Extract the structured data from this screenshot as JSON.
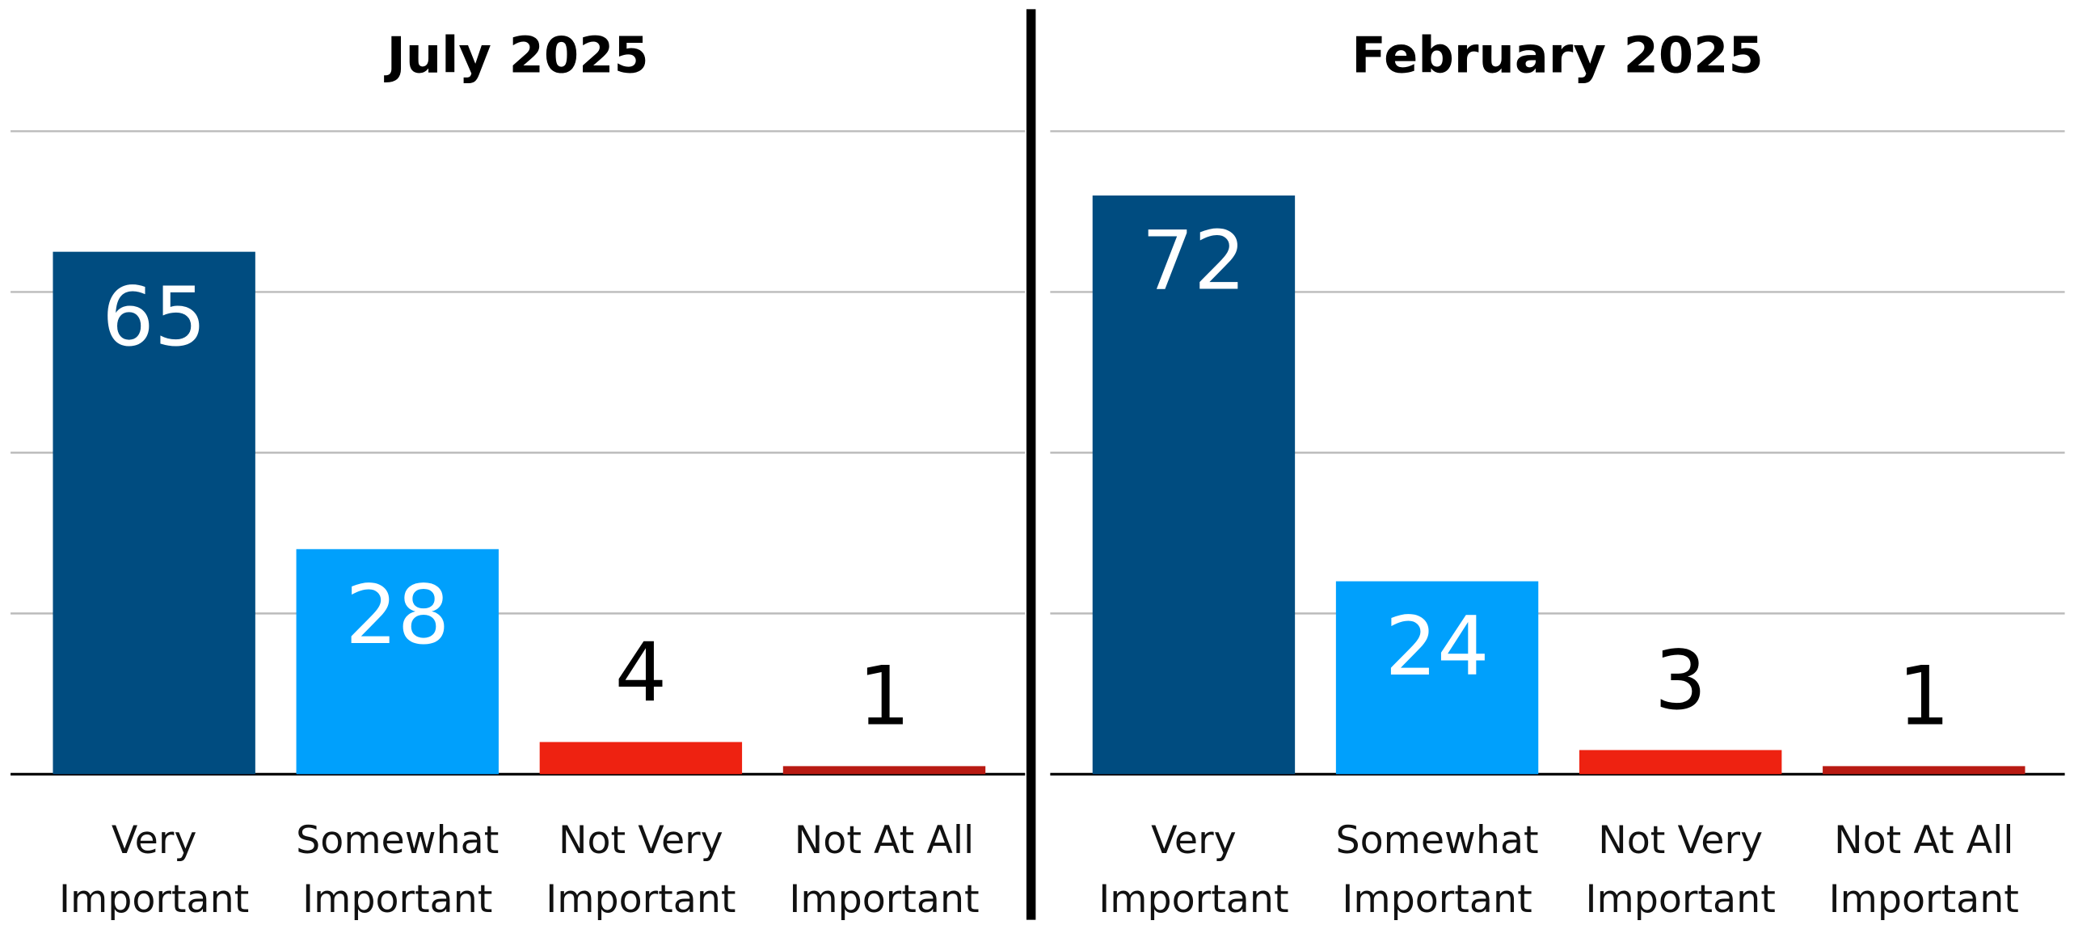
{
  "chart_data": [
    {
      "type": "bar",
      "title": "July 2025",
      "categories": [
        "Very Important",
        "Somewhat Important",
        "Not Very Important",
        "Not At All Important"
      ],
      "values": [
        65,
        28,
        4,
        1
      ],
      "colors": [
        "#004c80",
        "#00a0fc",
        "#ee2211",
        "#b81a12"
      ],
      "ylim": [
        0,
        80
      ],
      "yticks": [
        0,
        20,
        40,
        60,
        80
      ],
      "grid": true
    },
    {
      "type": "bar",
      "title": "February 2025",
      "categories": [
        "Very Important",
        "Somewhat Important",
        "Not Very Important",
        "Not At All Important"
      ],
      "values": [
        72,
        24,
        3,
        1
      ],
      "colors": [
        "#004c80",
        "#00a0fc",
        "#ee2211",
        "#b81a12"
      ],
      "ylim": [
        0,
        80
      ],
      "yticks": [
        0,
        20,
        40,
        60,
        80
      ],
      "grid": true
    }
  ]
}
